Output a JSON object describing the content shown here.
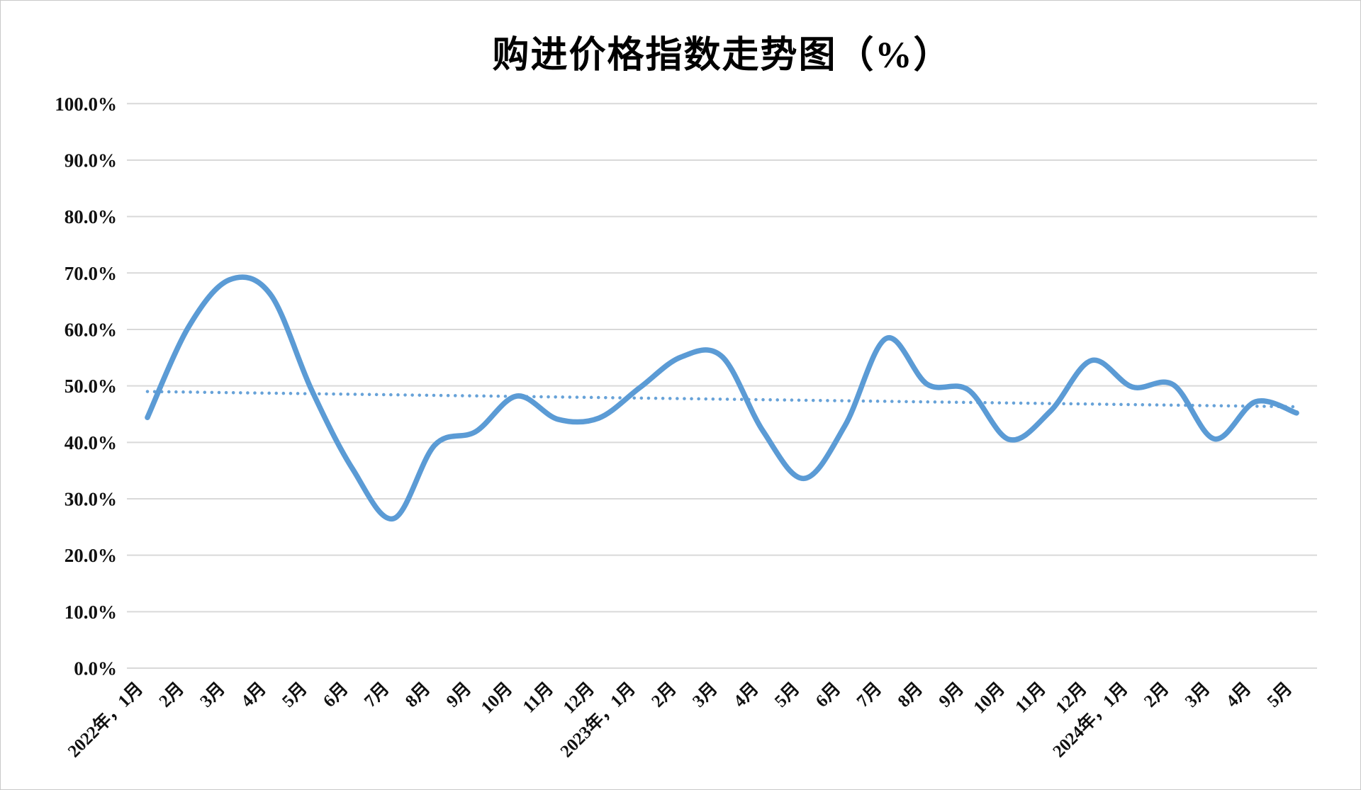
{
  "title": "购进价格指数走势图（%）",
  "colors": {
    "series_line": "#5B9BD5",
    "trend_line": "#5B9BD5",
    "gridline": "#D9D9D9",
    "label_text": "#111111",
    "background": "#ffffff"
  },
  "chart_data": {
    "type": "line",
    "title": "购进价格指数走势图（%）",
    "categories": [
      "2022年，1月",
      "2月",
      "3月",
      "4月",
      "5月",
      "6月",
      "7月",
      "8月",
      "9月",
      "10月",
      "11月",
      "12月",
      "2023年，1月",
      "2月",
      "3月",
      "4月",
      "5月",
      "6月",
      "7月",
      "8月",
      "9月",
      "10月",
      "11月",
      "12月",
      "2024年，1月",
      "2月",
      "3月",
      "4月",
      "5月"
    ],
    "series": [
      {
        "name": "购进价格指数",
        "smoothed": true,
        "values": [
          44.4,
          60.4,
          68.8,
          66.2,
          49.3,
          35.3,
          26.5,
          39.5,
          41.9,
          48.2,
          44.1,
          44.3,
          49.7,
          55.1,
          55.2,
          42.0,
          33.6,
          43.0,
          58.4,
          50.3,
          49.3,
          40.5,
          45.5,
          54.5,
          49.8,
          50.2,
          40.6,
          47.2,
          45.2
        ]
      }
    ],
    "trendline": {
      "style": "dotted",
      "start_value": 49.0,
      "end_value": 46.3
    },
    "xlabel": "",
    "ylabel": "",
    "ylim": [
      0,
      100
    ],
    "ytick_step": 10,
    "ytick_labels": [
      "0.0%",
      "10.0%",
      "20.0%",
      "30.0%",
      "40.0%",
      "50.0%",
      "60.0%",
      "70.0%",
      "80.0%",
      "90.0%",
      "100.0%"
    ],
    "grid": true,
    "legend_position": "none",
    "x_label_rotation_deg": 45
  }
}
